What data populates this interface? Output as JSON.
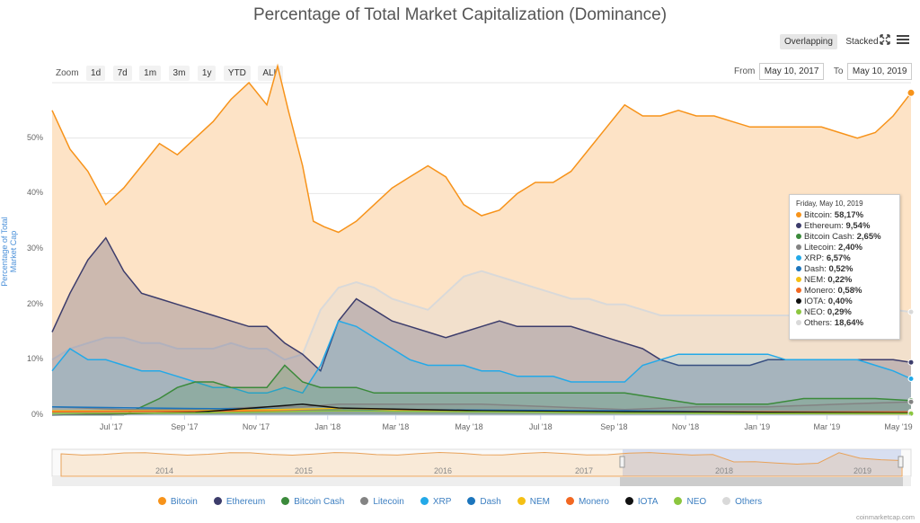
{
  "chart_data": {
    "type": "area",
    "title": "Percentage of Total Market Capitalization (Dominance)",
    "ylabel": "Percentage of Total Market Cap",
    "ylim": [
      0,
      60
    ],
    "y_ticks": [
      "0%",
      "10%",
      "20%",
      "30%",
      "40%",
      "50%"
    ],
    "x_ticks": [
      "Jul '17",
      "Sep '17",
      "Nov '17",
      "Jan '18",
      "Mar '18",
      "May '18",
      "Jul '18",
      "Sep '18",
      "Nov '18",
      "Jan '19",
      "Mar '19",
      "May '19"
    ],
    "x_tick_pos": [
      1.65,
      3.7,
      5.7,
      7.7,
      9.6,
      11.65,
      13.65,
      15.7,
      17.7,
      19.7,
      21.65,
      23.65
    ],
    "x_range": [
      0,
      24
    ],
    "series": [
      {
        "name": "Bitcoin",
        "color": "#f7931a",
        "fill": "#fde3c6",
        "x": [
          0,
          0.5,
          1,
          1.5,
          2,
          2.5,
          3,
          3.5,
          4,
          4.5,
          5,
          5.5,
          6,
          6.3,
          6.6,
          7,
          7.3,
          7.6,
          8,
          8.5,
          9,
          9.5,
          10,
          10.5,
          11,
          11.5,
          12,
          12.5,
          13,
          13.5,
          14,
          14.5,
          15,
          15.5,
          16,
          16.5,
          17,
          17.5,
          18,
          18.5,
          19,
          19.5,
          20,
          20.5,
          21,
          21.5,
          22,
          22.5,
          23,
          23.5,
          24
        ],
        "values": [
          55,
          48,
          44,
          38,
          41,
          45,
          49,
          47,
          50,
          53,
          57,
          60,
          56,
          63,
          55,
          45,
          35,
          34,
          33,
          35,
          38,
          41,
          43,
          45,
          43,
          38,
          36,
          37,
          40,
          42,
          42,
          44,
          48,
          52,
          56,
          54,
          54,
          55,
          54,
          54,
          53,
          52,
          52,
          52,
          52,
          52,
          51,
          50,
          51,
          54,
          58.17
        ]
      },
      {
        "name": "Ethereum",
        "color": "#3c3c6b",
        "fill": "rgba(60,60,107,0.25)",
        "x": [
          0,
          0.5,
          1,
          1.5,
          2,
          2.5,
          3,
          3.5,
          4,
          4.5,
          5,
          5.5,
          6,
          6.5,
          7,
          7.5,
          8,
          8.5,
          9,
          9.5,
          10,
          10.5,
          11,
          11.5,
          12,
          12.5,
          13,
          13.5,
          14,
          14.5,
          15,
          15.5,
          16,
          16.5,
          17,
          17.5,
          18,
          18.5,
          19,
          19.5,
          20,
          20.5,
          21,
          21.5,
          22,
          22.5,
          23,
          23.5,
          24
        ],
        "values": [
          15,
          22,
          28,
          32,
          26,
          22,
          21,
          20,
          19,
          18,
          17,
          16,
          16,
          13,
          11,
          8,
          17,
          21,
          19,
          17,
          16,
          15,
          14,
          15,
          16,
          17,
          16,
          16,
          16,
          16,
          15,
          14,
          13,
          12,
          10,
          9,
          9,
          9,
          9,
          9,
          10,
          10,
          10,
          10,
          10,
          10,
          10,
          10,
          9.54
        ]
      },
      {
        "name": "XRP",
        "color": "#23a9e8",
        "fill": "rgba(35,169,232,0.18)",
        "x": [
          0,
          0.5,
          1,
          1.5,
          2,
          2.5,
          3,
          3.5,
          4,
          4.5,
          5,
          5.5,
          6,
          6.5,
          7,
          7.5,
          8,
          8.5,
          9,
          9.5,
          10,
          10.5,
          11,
          11.5,
          12,
          12.5,
          13,
          13.5,
          14,
          14.5,
          15,
          15.5,
          16,
          16.5,
          17,
          17.5,
          18,
          18.5,
          19,
          19.5,
          20,
          20.5,
          21,
          21.5,
          22,
          22.5,
          23,
          23.5,
          24
        ],
        "values": [
          8,
          12,
          10,
          10,
          9,
          8,
          8,
          7,
          6,
          5,
          5,
          4,
          4,
          5,
          4,
          9,
          17,
          16,
          14,
          12,
          10,
          9,
          9,
          9,
          8,
          8,
          7,
          7,
          7,
          6,
          6,
          6,
          6,
          9,
          10,
          11,
          11,
          11,
          11,
          11,
          11,
          10,
          10,
          10,
          10,
          10,
          9,
          8,
          6.57
        ]
      },
      {
        "name": "Bitcoin Cash",
        "color": "#3b8a3b",
        "fill": "rgba(59,138,59,0.2)",
        "x": [
          0,
          1,
          2,
          3,
          3.5,
          4,
          4.5,
          5,
          5.5,
          6,
          6.5,
          7,
          7.5,
          8,
          8.5,
          9,
          10,
          11,
          12,
          13,
          14,
          15,
          16,
          17,
          18,
          19,
          20,
          21,
          22,
          23,
          24
        ],
        "values": [
          0,
          0,
          0,
          3,
          5,
          6,
          6,
          5,
          5,
          5,
          9,
          6,
          5,
          5,
          5,
          4,
          4,
          4,
          4,
          4,
          4,
          4,
          4,
          3,
          2,
          2,
          2,
          3,
          3,
          3,
          2.65
        ]
      },
      {
        "name": "Litecoin",
        "color": "#838383",
        "fill": "rgba(131,131,131,0.2)",
        "x": [
          0,
          2,
          4,
          6,
          7,
          8,
          10,
          12,
          14,
          16,
          18,
          20,
          22,
          24
        ],
        "values": [
          1.5,
          1,
          1,
          1.5,
          1.5,
          2,
          2,
          2,
          1.5,
          1,
          1.5,
          1.5,
          2,
          2.4
        ]
      },
      {
        "name": "Others",
        "color": "#d9d9d9",
        "fill": "rgba(220,220,220,0.3)",
        "x": [
          0,
          0.5,
          1,
          1.5,
          2,
          2.5,
          3,
          3.5,
          4,
          4.5,
          5,
          5.5,
          6,
          6.5,
          7,
          7.5,
          8,
          8.5,
          9,
          9.5,
          10,
          10.5,
          11,
          11.5,
          12,
          12.5,
          13,
          13.5,
          14,
          14.5,
          15,
          15.5,
          16,
          16.5,
          17,
          17.5,
          18,
          18.5,
          19,
          19.5,
          20,
          20.5,
          21,
          21.5,
          22,
          22.5,
          23,
          23.5,
          24
        ],
        "values": [
          10,
          12,
          13,
          14,
          14,
          13,
          13,
          12,
          12,
          12,
          13,
          12,
          12,
          10,
          11,
          19,
          23,
          24,
          23,
          21,
          20,
          19,
          22,
          25,
          26,
          25,
          24,
          23,
          22,
          21,
          21,
          20,
          20,
          19,
          18,
          18,
          18,
          18,
          18,
          18,
          18,
          18,
          18,
          18,
          18,
          19,
          19,
          19,
          18.64
        ]
      },
      {
        "name": "Dash",
        "color": "#1c75bc",
        "fill": "none",
        "x": [
          0,
          4,
          8,
          12,
          16,
          20,
          24
        ],
        "values": [
          1.5,
          1.2,
          1,
          0.9,
          0.8,
          0.6,
          0.52
        ]
      },
      {
        "name": "NEM",
        "color": "#f5c014",
        "fill": "none",
        "x": [
          0,
          4,
          8,
          12,
          16,
          20,
          24
        ],
        "values": [
          0.8,
          0.8,
          1.2,
          0.7,
          0.4,
          0.3,
          0.22
        ]
      },
      {
        "name": "Monero",
        "color": "#f26822",
        "fill": "none",
        "x": [
          0,
          4,
          8,
          12,
          16,
          20,
          24
        ],
        "values": [
          0.6,
          0.7,
          0.8,
          0.7,
          0.6,
          0.6,
          0.58
        ]
      },
      {
        "name": "IOTA",
        "color": "#111111",
        "fill": "none",
        "x": [
          0,
          4,
          7,
          8,
          12,
          16,
          20,
          24
        ],
        "values": [
          0,
          0.5,
          2,
          1.3,
          0.8,
          0.6,
          0.5,
          0.4
        ]
      },
      {
        "name": "NEO",
        "color": "#8cc63f",
        "fill": "none",
        "x": [
          0,
          4,
          8,
          12,
          16,
          20,
          24
        ],
        "values": [
          0.3,
          0.4,
          0.8,
          0.6,
          0.4,
          0.3,
          0.29
        ]
      }
    ],
    "navigator": {
      "years": [
        "2014",
        "2015",
        "2016",
        "2017",
        "2018",
        "2019"
      ]
    }
  },
  "toolbar": {
    "overlapping_label": "Overlapping",
    "stacked_label": "Stacked",
    "zoom_label": "Zoom",
    "zoom_buttons": [
      "1d",
      "7d",
      "1m",
      "3m",
      "1y",
      "YTD",
      "ALL"
    ],
    "from_label": "From",
    "from_date": "May 10, 2017",
    "to_label": "To",
    "to_date": "May 10, 2019"
  },
  "tooltip": {
    "date": "Friday, May 10, 2019",
    "rows": [
      {
        "name": "Bitcoin",
        "value": "58,17%",
        "color": "#f7931a"
      },
      {
        "name": "Ethereum",
        "value": "9,54%",
        "color": "#3c3c6b"
      },
      {
        "name": "Bitcoin Cash",
        "value": "2,65%",
        "color": "#3b8a3b"
      },
      {
        "name": "Litecoin",
        "value": "2,40%",
        "color": "#838383"
      },
      {
        "name": "XRP",
        "value": "6,57%",
        "color": "#23a9e8"
      },
      {
        "name": "Dash",
        "value": "0,52%",
        "color": "#1c75bc"
      },
      {
        "name": "NEM",
        "value": "0,22%",
        "color": "#f5c014"
      },
      {
        "name": "Monero",
        "value": "0,58%",
        "color": "#f26822"
      },
      {
        "name": "IOTA",
        "value": "0,40%",
        "color": "#111111"
      },
      {
        "name": "NEO",
        "value": "0,29%",
        "color": "#8cc63f"
      },
      {
        "name": "Others",
        "value": "18,64%",
        "color": "#d9d9d9"
      }
    ]
  },
  "legend": [
    {
      "name": "Bitcoin",
      "color": "#f7931a"
    },
    {
      "name": "Ethereum",
      "color": "#3c3c6b"
    },
    {
      "name": "Bitcoin Cash",
      "color": "#3b8a3b"
    },
    {
      "name": "Litecoin",
      "color": "#838383"
    },
    {
      "name": "XRP",
      "color": "#23a9e8"
    },
    {
      "name": "Dash",
      "color": "#1c75bc"
    },
    {
      "name": "NEM",
      "color": "#f5c014"
    },
    {
      "name": "Monero",
      "color": "#f26822"
    },
    {
      "name": "IOTA",
      "color": "#111111"
    },
    {
      "name": "NEO",
      "color": "#8cc63f"
    },
    {
      "name": "Others",
      "color": "#d9d9d9"
    }
  ],
  "credit": "coinmarketcap.com"
}
